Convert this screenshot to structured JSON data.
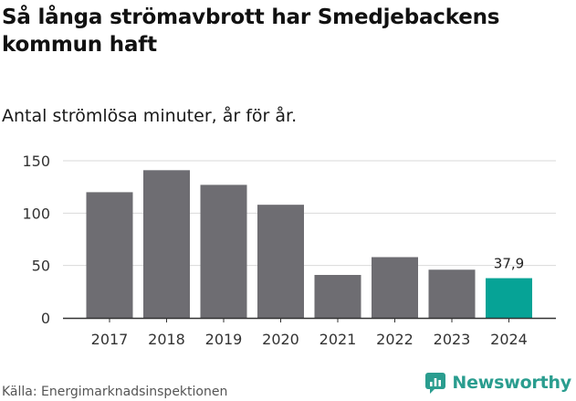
{
  "header": {
    "title": "Så långa strömavbrott har Smedjebackens kommun haft",
    "subtitle": "Antal strömlösa minuter, år för år."
  },
  "footer": {
    "source": "Källa: Energimarknadsinspektionen",
    "brand": "Newsworthy",
    "brand_icon": "newsworthy-logo-icon"
  },
  "colors": {
    "bar": "#6e6d72",
    "highlight": "#06a396",
    "grid": "#d9d9d9",
    "axis": "#333333",
    "brand": "#2a9d8f"
  },
  "chart_data": {
    "type": "bar",
    "title": "Så långa strömavbrott har Smedjebackens kommun haft",
    "subtitle": "Antal strömlösa minuter, år för år.",
    "xlabel": "",
    "ylabel": "",
    "categories": [
      "2017",
      "2018",
      "2019",
      "2020",
      "2021",
      "2022",
      "2023",
      "2024"
    ],
    "values": [
      120,
      141,
      127,
      108,
      41,
      58,
      46,
      37.9
    ],
    "highlight_index": 7,
    "data_labels": [
      {
        "index": 7,
        "text": "37,9"
      }
    ],
    "ylim": [
      0,
      150
    ],
    "yticks": [
      0,
      50,
      100,
      150
    ],
    "grid": true,
    "legend": "none"
  }
}
